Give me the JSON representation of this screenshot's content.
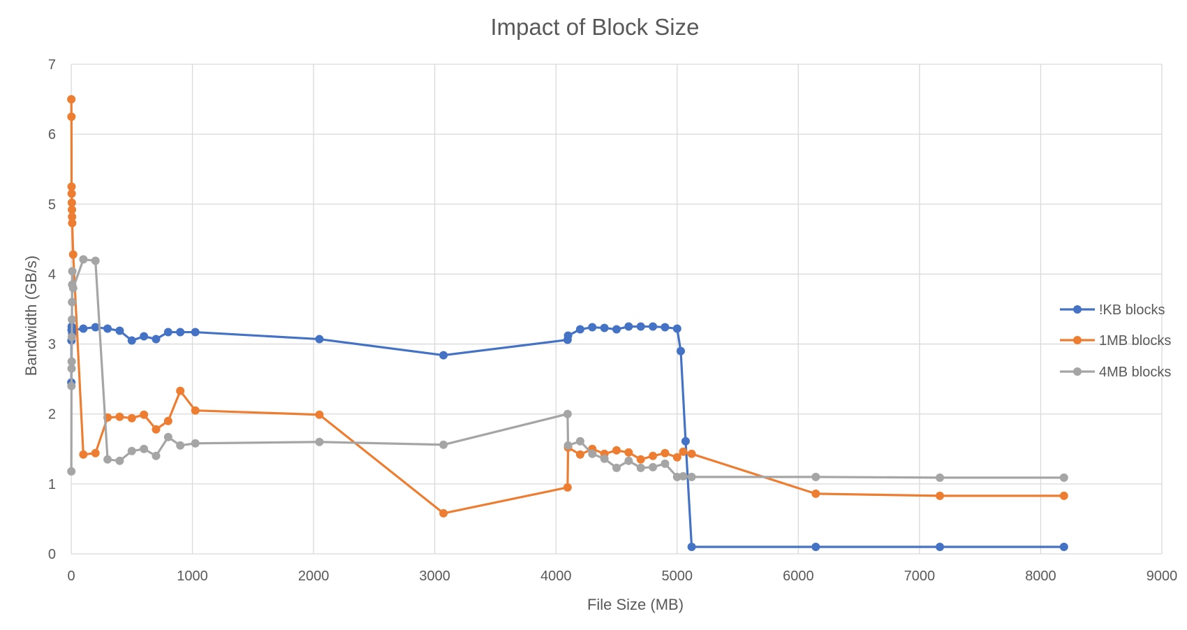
{
  "chart_data": {
    "type": "line",
    "title": "Impact of Block Size",
    "xlabel": "File Size (MB)",
    "ylabel": "Bandwidth (GB/s)",
    "xlim": [
      0,
      9000
    ],
    "ylim": [
      0,
      7
    ],
    "xticks": [
      "0",
      "1000",
      "2000",
      "3000",
      "4000",
      "5000",
      "6000",
      "7000",
      "8000",
      "9000"
    ],
    "yticks": [
      "0",
      "1",
      "2",
      "3",
      "4",
      "5",
      "6",
      "7"
    ],
    "grid": true,
    "legend_position": "right",
    "series": [
      {
        "name": "!KB blocks",
        "color": "#4472c4",
        "points": [
          [
            1,
            2.45
          ],
          [
            2,
            3.05
          ],
          [
            3,
            3.2
          ],
          [
            4,
            3.25
          ],
          [
            8,
            3.15
          ],
          [
            16,
            3.2
          ],
          [
            100,
            3.22
          ],
          [
            200,
            3.24
          ],
          [
            300,
            3.22
          ],
          [
            400,
            3.19
          ],
          [
            500,
            3.05
          ],
          [
            600,
            3.11
          ],
          [
            700,
            3.07
          ],
          [
            800,
            3.17
          ],
          [
            900,
            3.17
          ],
          [
            1024,
            3.17
          ],
          [
            2048,
            3.07
          ],
          [
            3072,
            2.84
          ],
          [
            4096,
            3.06
          ],
          [
            4100,
            3.12
          ],
          [
            4200,
            3.21
          ],
          [
            4300,
            3.24
          ],
          [
            4400,
            3.23
          ],
          [
            4500,
            3.21
          ],
          [
            4600,
            3.25
          ],
          [
            4700,
            3.25
          ],
          [
            4800,
            3.25
          ],
          [
            4900,
            3.24
          ],
          [
            5000,
            3.22
          ],
          [
            5030,
            2.9
          ],
          [
            5070,
            1.61
          ],
          [
            5120,
            0.1
          ],
          [
            6144,
            0.1
          ],
          [
            7168,
            0.1
          ],
          [
            8192,
            0.1
          ]
        ]
      },
      {
        "name": "1MB blocks",
        "color": "#ed7d31",
        "points": [
          [
            1,
            6.5
          ],
          [
            2,
            6.25
          ],
          [
            3,
            5.25
          ],
          [
            4,
            5.15
          ],
          [
            5,
            5.02
          ],
          [
            6,
            4.92
          ],
          [
            7,
            4.82
          ],
          [
            8,
            4.73
          ],
          [
            16,
            4.28
          ],
          [
            100,
            1.42
          ],
          [
            200,
            1.44
          ],
          [
            300,
            1.95
          ],
          [
            400,
            1.96
          ],
          [
            500,
            1.94
          ],
          [
            600,
            1.99
          ],
          [
            700,
            1.78
          ],
          [
            800,
            1.9
          ],
          [
            900,
            2.33
          ],
          [
            1024,
            2.05
          ],
          [
            2048,
            1.99
          ],
          [
            3072,
            0.58
          ],
          [
            4096,
            0.95
          ],
          [
            4100,
            1.52
          ],
          [
            4200,
            1.42
          ],
          [
            4300,
            1.5
          ],
          [
            4400,
            1.43
          ],
          [
            4500,
            1.48
          ],
          [
            4600,
            1.45
          ],
          [
            4700,
            1.35
          ],
          [
            4800,
            1.4
          ],
          [
            4900,
            1.44
          ],
          [
            5000,
            1.38
          ],
          [
            5050,
            1.46
          ],
          [
            5120,
            1.43
          ],
          [
            6144,
            0.86
          ],
          [
            7168,
            0.83
          ],
          [
            8192,
            0.83
          ]
        ]
      },
      {
        "name": "4MB blocks",
        "color": "#a5a5a5",
        "points": [
          [
            1,
            1.18
          ],
          [
            2,
            2.4
          ],
          [
            3,
            2.65
          ],
          [
            4,
            2.75
          ],
          [
            5,
            3.1
          ],
          [
            6,
            3.35
          ],
          [
            7,
            3.6
          ],
          [
            8,
            3.85
          ],
          [
            9,
            4.04
          ],
          [
            16,
            3.8
          ],
          [
            100,
            4.21
          ],
          [
            200,
            4.19
          ],
          [
            300,
            1.35
          ],
          [
            400,
            1.33
          ],
          [
            500,
            1.47
          ],
          [
            600,
            1.5
          ],
          [
            700,
            1.4
          ],
          [
            800,
            1.67
          ],
          [
            900,
            1.55
          ],
          [
            1024,
            1.58
          ],
          [
            2048,
            1.6
          ],
          [
            3072,
            1.56
          ],
          [
            4096,
            2.0
          ],
          [
            4100,
            1.55
          ],
          [
            4200,
            1.61
          ],
          [
            4300,
            1.43
          ],
          [
            4400,
            1.36
          ],
          [
            4500,
            1.23
          ],
          [
            4600,
            1.33
          ],
          [
            4700,
            1.23
          ],
          [
            4800,
            1.24
          ],
          [
            4900,
            1.29
          ],
          [
            5000,
            1.1
          ],
          [
            5050,
            1.11
          ],
          [
            5120,
            1.1
          ],
          [
            6144,
            1.1
          ],
          [
            7168,
            1.09
          ],
          [
            8192,
            1.09
          ]
        ]
      }
    ]
  }
}
